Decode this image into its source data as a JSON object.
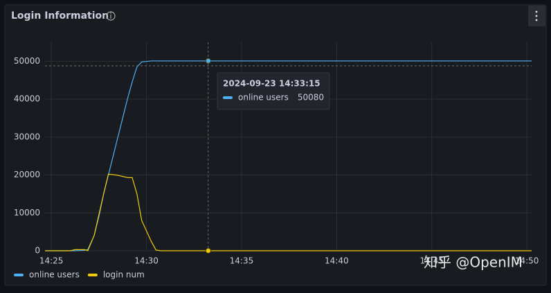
{
  "chart_data": {
    "type": "line",
    "title": "Login Information",
    "x": [
      "14:24:40",
      "14:25:00",
      "14:26:00",
      "14:26:15",
      "14:26:45",
      "14:26:55",
      "14:27:15",
      "14:27:30",
      "14:27:45",
      "14:28:00",
      "14:28:30",
      "14:29:00",
      "14:29:15",
      "14:29:30",
      "14:29:45",
      "14:30:15",
      "14:30:30",
      "14:30:45",
      "14:33:15",
      "14:50:15"
    ],
    "series": [
      {
        "name": "online users",
        "color": "#4fb0f2",
        "values": [
          0,
          0,
          0,
          0,
          100,
          300,
          4000,
          9000,
          15000,
          20000,
          30000,
          40000,
          44500,
          48500,
          49800,
          50080,
          50080,
          50080,
          50080,
          50080
        ]
      },
      {
        "name": "login num",
        "color": "#f2cc0c",
        "values": [
          0,
          0,
          0,
          300,
          300,
          0,
          4000,
          9500,
          15000,
          20200,
          19900,
          19300,
          19300,
          15000,
          8000,
          2500,
          200,
          0,
          0,
          0
        ]
      }
    ],
    "xlim": [
      "14:24:40",
      "14:50:15"
    ],
    "xticks": [
      "14:25",
      "14:30",
      "14:35",
      "14:40",
      "14:45",
      "14:50"
    ],
    "ylim": [
      0,
      55000
    ],
    "yticks": [
      0,
      10000,
      20000,
      30000,
      40000,
      50000
    ],
    "grid": true,
    "legend": "bottom-left",
    "tooltip": {
      "time": "2024-09-23 14:33:15",
      "x_index": 18,
      "series_index": 0
    },
    "watermark": "知乎 @OpenIM"
  }
}
